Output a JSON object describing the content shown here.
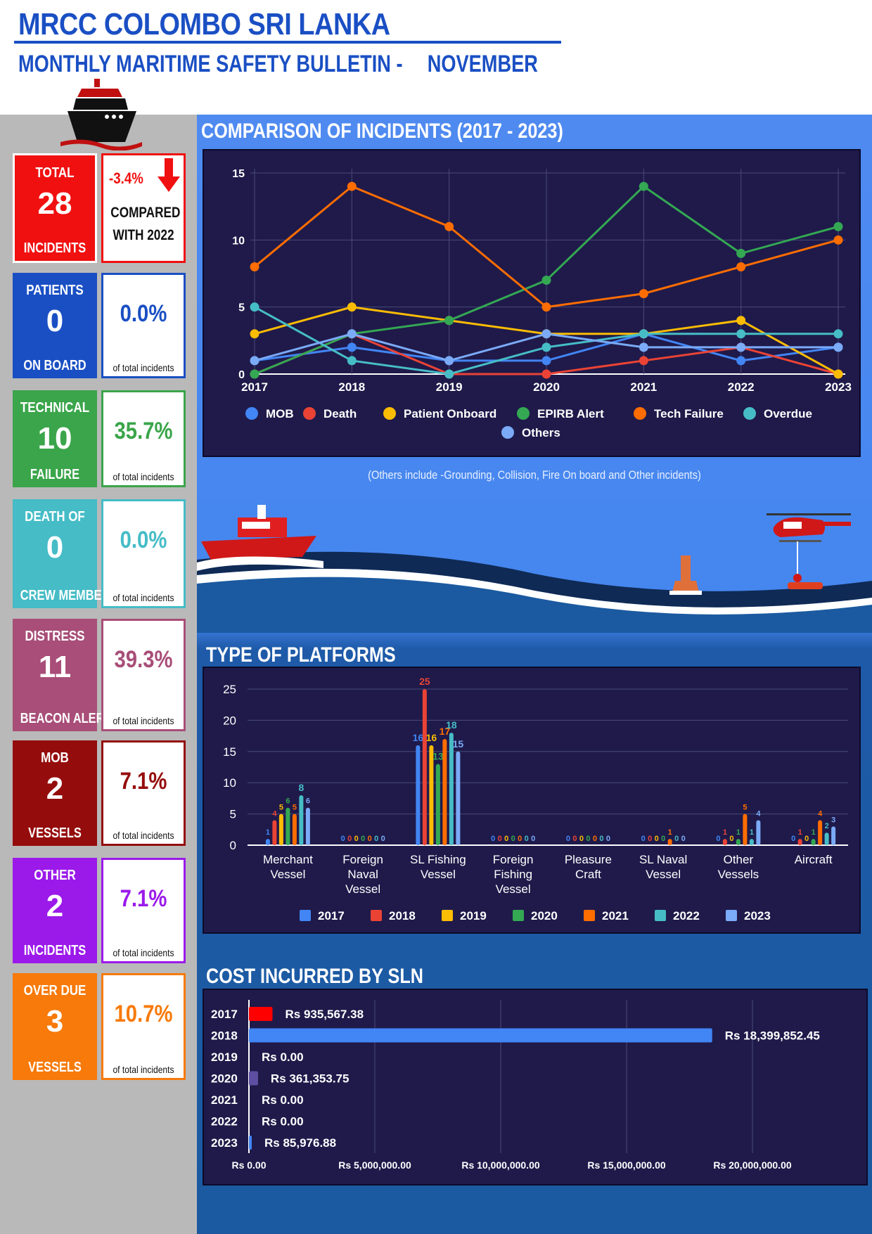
{
  "header": {
    "title": "MRCC COLOMBO SRI LANKA",
    "subtitle": "MONTHLY MARITIME SAFETY BULLETIN -",
    "month": "NOVEMBER"
  },
  "colors": {
    "blue_title": "#1a4fc4",
    "panel_grey": "#b9b9b9",
    "chart_bg": "#1f1a4a"
  },
  "stats": [
    {
      "top": "TOTAL",
      "value": "28",
      "bottom": "INCIDENTS",
      "color": "#f01010",
      "pct": "-3.4%",
      "note_line1": "COMPARED",
      "note_line2": "WITH 2022",
      "icon": "down-arrow-icon"
    },
    {
      "top": "PATIENTS",
      "value": "0",
      "bottom": "ON BOARD",
      "color": "#1a4fc4",
      "pct": "0.0%",
      "note": "of total incidents"
    },
    {
      "top": "TECHNICAL",
      "value": "10",
      "bottom": "FAILURE",
      "color": "#3aa54a",
      "pct": "35.7%",
      "note": "of total incidents"
    },
    {
      "top": "DEATH OF",
      "value": "0",
      "bottom": "CREW MEMBER",
      "color": "#45bcc6",
      "pct": "0.0%",
      "note": "of total incidents"
    },
    {
      "top": "DISTRESS",
      "value": "11",
      "bottom": "BEACON ALERT",
      "color": "#a84e78",
      "pct": "39.3%",
      "note": "of total incidents"
    },
    {
      "top": "MOB",
      "value": "2",
      "bottom": "VESSELS",
      "color": "#950c0c",
      "pct": "7.1%",
      "note": "of total incidents"
    },
    {
      "top": "OTHER",
      "value": "2",
      "bottom": "INCIDENTS",
      "color": "#9b1aea",
      "pct": "7.1%",
      "note": "of total incidents"
    },
    {
      "top": "OVER DUE",
      "value": "3",
      "bottom": "VESSELS",
      "color": "#f77a0a",
      "pct": "10.7%",
      "note": "of total incidents"
    }
  ],
  "sections": {
    "comparison_title": "COMPARISON OF INCIDENTS (2017 - 2023)",
    "others_note": "(Others include -Grounding, Collision, Fire On board and Other incidents)",
    "platforms_title": "TYPE OF PLATFORMS",
    "cost_title": "COST INCURRED BY SLN"
  },
  "chart_data": [
    {
      "type": "line",
      "title": "COMPARISON OF INCIDENTS (2017 - 2023)",
      "x": [
        "2017",
        "2018",
        "2019",
        "2020",
        "2021",
        "2022",
        "2023"
      ],
      "ylim": [
        0,
        15
      ],
      "yticks": [
        0,
        5,
        10,
        15
      ],
      "grid": true,
      "legend": "bottom",
      "series": [
        {
          "name": "MOB",
          "color": "#4285f4",
          "values": [
            1,
            2,
            1,
            1,
            3,
            1,
            2
          ]
        },
        {
          "name": "Death",
          "color": "#ea4335",
          "values": [
            0,
            3,
            0,
            0,
            1,
            2,
            0
          ]
        },
        {
          "name": "Patient Onboard",
          "color": "#fbbc04",
          "values": [
            3,
            5,
            4,
            3,
            3,
            4,
            0
          ]
        },
        {
          "name": "EPIRB Alert",
          "color": "#34a853",
          "values": [
            0,
            3,
            4,
            7,
            14,
            9,
            11
          ]
        },
        {
          "name": "Tech Failure",
          "color": "#ff6d01",
          "values": [
            8,
            14,
            11,
            5,
            6,
            8,
            10
          ]
        },
        {
          "name": "Overdue",
          "color": "#46bdc6",
          "values": [
            5,
            1,
            0,
            2,
            3,
            3,
            3
          ]
        },
        {
          "name": "Others",
          "color": "#7baaf7",
          "values": [
            1,
            3,
            1,
            3,
            2,
            2,
            2
          ]
        }
      ]
    },
    {
      "type": "bar",
      "title": "TYPE OF PLATFORMS",
      "categories": [
        "Merchant Vessel",
        "Foreign Naval Vessel",
        "SL Fishing Vessel",
        "Foreign Fishing Vessel",
        "Pleasure Craft",
        "SL Naval Vessel",
        "Other Vessels",
        "Aircraft"
      ],
      "ylim": [
        0,
        25
      ],
      "yticks": [
        0,
        5,
        10,
        15,
        20,
        25
      ],
      "grid": true,
      "legend": "bottom",
      "series": [
        {
          "name": "2017",
          "color": "#4285f4",
          "values": [
            1,
            0,
            16,
            0,
            0,
            0,
            0,
            0
          ]
        },
        {
          "name": "2018",
          "color": "#ea4335",
          "values": [
            4,
            0,
            25,
            0,
            0,
            0,
            1,
            1
          ]
        },
        {
          "name": "2019",
          "color": "#fbbc04",
          "values": [
            5,
            0,
            16,
            0,
            0,
            0,
            0,
            0
          ]
        },
        {
          "name": "2020",
          "color": "#34a853",
          "values": [
            6,
            0,
            13,
            0,
            0,
            0,
            1,
            1
          ]
        },
        {
          "name": "2021",
          "color": "#ff6d01",
          "values": [
            5,
            0,
            17,
            0,
            0,
            1,
            5,
            4
          ]
        },
        {
          "name": "2022",
          "color": "#46bdc6",
          "values": [
            8,
            0,
            18,
            0,
            0,
            0,
            1,
            2
          ]
        },
        {
          "name": "2023",
          "color": "#7baaf7",
          "values": [
            6,
            0,
            15,
            0,
            0,
            0,
            4,
            3
          ]
        }
      ]
    },
    {
      "type": "bar",
      "orientation": "horizontal",
      "title": "COST INCURRED BY SLN",
      "categories": [
        "2017",
        "2018",
        "2019",
        "2020",
        "2021",
        "2022",
        "2023"
      ],
      "values": [
        935567.38,
        18399852.45,
        0,
        361353.75,
        0,
        0,
        85976.88
      ],
      "value_labels": [
        "Rs 935,567.38",
        "Rs 18,399,852.45",
        "Rs 0.00",
        "Rs 361,353.75",
        "Rs 0.00",
        "Rs 0.00",
        "Rs 85,976.88"
      ],
      "colors": [
        "#ff0000",
        "#4285f4",
        "#ffffff",
        "#5e4fa2",
        "#ffffff",
        "#ffffff",
        "#4285f4"
      ],
      "xlim": [
        0,
        20000000
      ],
      "xticks": [
        0,
        5000000,
        10000000,
        15000000,
        20000000
      ],
      "xtick_labels": [
        "Rs 0.00",
        "Rs 5,000,000.00",
        "Rs 10,000,000.00",
        "Rs 15,000,000.00",
        "Rs 20,000,000.00"
      ],
      "grid": true
    }
  ]
}
